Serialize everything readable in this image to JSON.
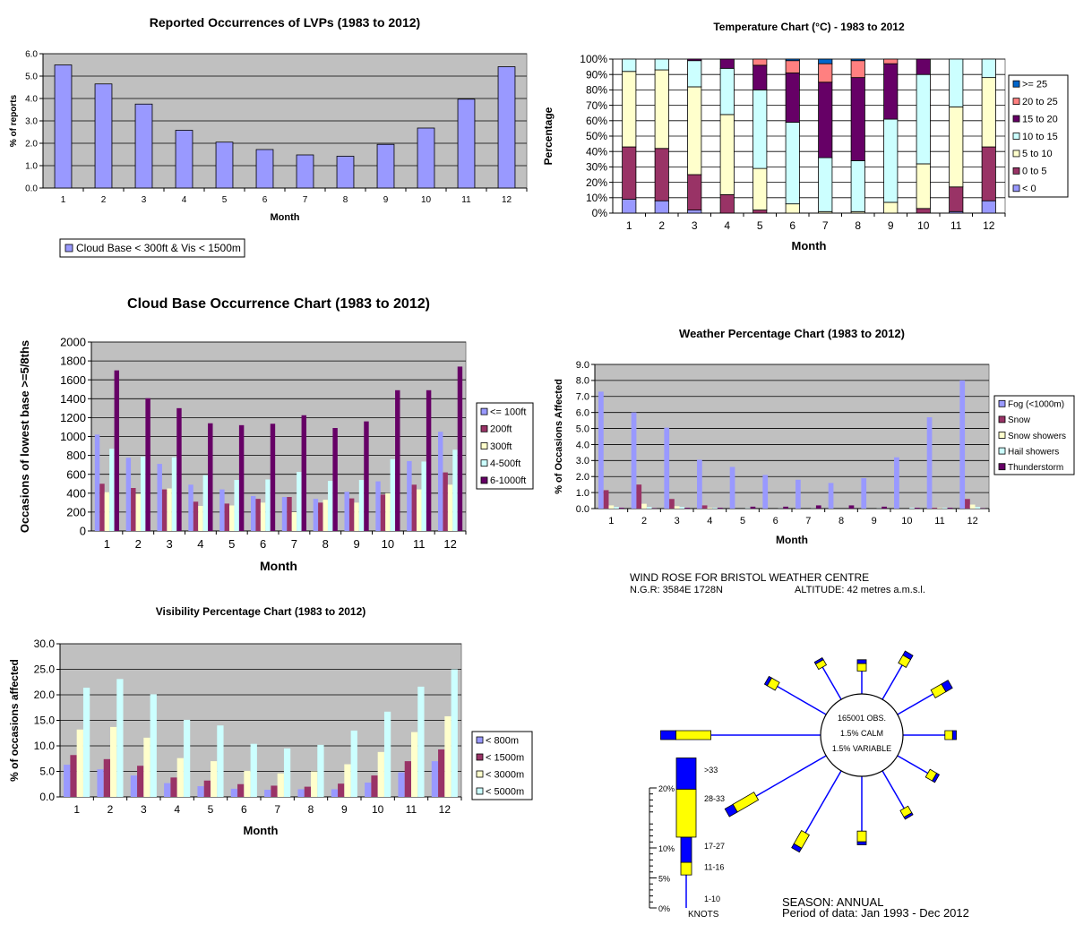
{
  "chart_data": [
    {
      "id": "lvp",
      "type": "bar",
      "title": "Reported Occurrences of LVPs (1983 to 2012)",
      "xlabel": "Month",
      "ylabel": "% of reports",
      "ylim": [
        0,
        6
      ],
      "yticks": [
        "0.0",
        "1.0",
        "2.0",
        "3.0",
        "4.0",
        "5.0",
        "6.0"
      ],
      "categories": [
        "1",
        "2",
        "3",
        "4",
        "5",
        "6",
        "7",
        "8",
        "9",
        "10",
        "11",
        "12"
      ],
      "series": [
        {
          "name": "Cloud Base < 300ft & Vis < 1500m",
          "color": "#9999ff",
          "values": [
            5.5,
            4.65,
            3.75,
            2.58,
            2.05,
            1.72,
            1.48,
            1.42,
            1.95,
            2.68,
            3.97,
            5.42
          ]
        }
      ],
      "legend": "bottom-left",
      "grid": true,
      "colors": {
        "plot_bg": "#c0c0c0"
      }
    },
    {
      "id": "temp",
      "type": "bar",
      "stacked": "percent",
      "title": "Temperature Chart (°C) - 1983 to 2012",
      "xlabel": "Month",
      "ylabel": "Percentage",
      "ylim": [
        0,
        100
      ],
      "yticks": [
        "0%",
        "10%",
        "20%",
        "30%",
        "40%",
        "50%",
        "60%",
        "70%",
        "80%",
        "90%",
        "100%"
      ],
      "categories": [
        "1",
        "2",
        "3",
        "4",
        "5",
        "6",
        "7",
        "8",
        "9",
        "10",
        "11",
        "12"
      ],
      "series": [
        {
          "name": "< 0",
          "color": "#9999ff",
          "values": [
            9,
            8,
            2,
            0,
            0,
            0,
            0,
            0,
            0,
            0,
            1,
            8
          ]
        },
        {
          "name": "0 to 5",
          "color": "#993366",
          "values": [
            34,
            34,
            23,
            12,
            2,
            0,
            0,
            0,
            0,
            3,
            16,
            35
          ]
        },
        {
          "name": "5 to 10",
          "color": "#ffffcc",
          "values": [
            49,
            51,
            57,
            52,
            27,
            6,
            1,
            1,
            7,
            29,
            52,
            45
          ]
        },
        {
          "name": "10 to 15",
          "color": "#ccffff",
          "values": [
            8,
            7,
            17,
            30,
            51,
            53,
            35,
            33,
            54,
            58,
            31,
            12
          ]
        },
        {
          "name": "15 to 20",
          "color": "#660066",
          "values": [
            0,
            0,
            1,
            6,
            16,
            32,
            49,
            54,
            36,
            10,
            0,
            0
          ]
        },
        {
          "name": "20 to 25",
          "color": "#ff8080",
          "values": [
            0,
            0,
            0,
            0,
            4,
            8,
            12,
            11,
            3,
            0,
            0,
            0
          ]
        },
        {
          "name": ">= 25",
          "color": "#0066cc",
          "values": [
            0,
            0,
            0,
            0,
            0,
            1,
            3,
            1,
            0,
            0,
            0,
            0
          ]
        }
      ],
      "legend": "right",
      "grid": true,
      "colors": {
        "plot_bg": "#ffffff"
      }
    },
    {
      "id": "cloud",
      "type": "bar",
      "title": "Cloud Base Occurrence Chart (1983 to 2012)",
      "xlabel": "Month",
      "ylabel": "Occasions of lowest base >=5/8ths",
      "ylim": [
        0,
        2000
      ],
      "yticks": [
        "0",
        "200",
        "400",
        "600",
        "800",
        "1000",
        "1200",
        "1400",
        "1600",
        "1800",
        "2000"
      ],
      "categories": [
        "1",
        "2",
        "3",
        "4",
        "5",
        "6",
        "7",
        "8",
        "9",
        "10",
        "11",
        "12"
      ],
      "series": [
        {
          "name": "<= 100ft",
          "color": "#9999ff",
          "values": [
            1020,
            775,
            710,
            490,
            440,
            370,
            360,
            340,
            415,
            525,
            740,
            1050
          ]
        },
        {
          "name": "200ft",
          "color": "#993366",
          "values": [
            500,
            455,
            440,
            310,
            290,
            340,
            360,
            300,
            345,
            385,
            490,
            620
          ]
        },
        {
          "name": "300ft",
          "color": "#ffffcc",
          "values": [
            410,
            395,
            450,
            265,
            270,
            300,
            200,
            330,
            300,
            400,
            440,
            490
          ]
        },
        {
          "name": "4-500ft",
          "color": "#ccffff",
          "values": [
            870,
            785,
            780,
            590,
            540,
            545,
            625,
            530,
            540,
            760,
            735,
            860
          ]
        },
        {
          "name": "6-1000ft",
          "color": "#660066",
          "values": [
            1700,
            1405,
            1300,
            1140,
            1120,
            1135,
            1225,
            1090,
            1160,
            1490,
            1490,
            1740
          ]
        }
      ],
      "legend": "right",
      "grid": true,
      "colors": {
        "plot_bg": "#c0c0c0"
      }
    },
    {
      "id": "weather",
      "type": "bar",
      "title": "Weather Percentage Chart (1983 to 2012)",
      "xlabel": "Month",
      "ylabel": "% of Occasions Affected",
      "ylim": [
        0,
        9
      ],
      "yticks": [
        "0.0",
        "1.0",
        "2.0",
        "3.0",
        "4.0",
        "5.0",
        "6.0",
        "7.0",
        "8.0",
        "9.0"
      ],
      "categories": [
        "1",
        "2",
        "3",
        "4",
        "5",
        "6",
        "7",
        "8",
        "9",
        "10",
        "11",
        "12"
      ],
      "series": [
        {
          "name": "Fog (<1000m)",
          "color": "#9999ff",
          "values": [
            7.3,
            6.0,
            5.05,
            3.05,
            2.6,
            2.1,
            1.8,
            1.6,
            1.9,
            3.2,
            5.7,
            8.0
          ]
        },
        {
          "name": "Snow",
          "color": "#993366",
          "values": [
            1.15,
            1.5,
            0.6,
            0.2,
            0,
            0,
            0,
            0,
            0,
            0,
            0.05,
            0.6
          ]
        },
        {
          "name": "Snow showers",
          "color": "#ffffcc",
          "values": [
            0.2,
            0.3,
            0.15,
            0.05,
            0,
            0,
            0,
            0,
            0,
            0,
            0.03,
            0.25
          ]
        },
        {
          "name": "Hail showers",
          "color": "#ccffff",
          "values": [
            0.1,
            0.1,
            0.1,
            0.05,
            0.02,
            0.01,
            0.01,
            0,
            0.01,
            0.05,
            0.05,
            0.1
          ]
        },
        {
          "name": "Thunderstorm",
          "color": "#660066",
          "values": [
            0.05,
            0.02,
            0.05,
            0.05,
            0.12,
            0.12,
            0.2,
            0.2,
            0.12,
            0.05,
            0.05,
            0.02
          ]
        }
      ],
      "legend": "right",
      "grid": true,
      "colors": {
        "plot_bg": "#c0c0c0"
      }
    },
    {
      "id": "vis",
      "type": "bar",
      "title": "Visibility Percentage Chart (1983 to 2012)",
      "xlabel": "Month",
      "ylabel": "% of occasions affected",
      "ylim": [
        0,
        30
      ],
      "yticks": [
        "0.0",
        "5.0",
        "10.0",
        "15.0",
        "20.0",
        "25.0",
        "30.0"
      ],
      "categories": [
        "1",
        "2",
        "3",
        "4",
        "5",
        "6",
        "7",
        "8",
        "9",
        "10",
        "11",
        "12"
      ],
      "series": [
        {
          "name": "< 800m",
          "color": "#9999ff",
          "values": [
            6.3,
            5.4,
            4.2,
            2.7,
            2.1,
            1.6,
            1.4,
            1.5,
            1.5,
            2.8,
            4.8,
            7.0
          ]
        },
        {
          "name": "< 1500m",
          "color": "#993366",
          "values": [
            8.2,
            7.4,
            6.1,
            3.8,
            3.2,
            2.5,
            2.2,
            2.0,
            2.6,
            4.2,
            7.0,
            9.3
          ]
        },
        {
          "name": "< 3000m",
          "color": "#ffffcc",
          "values": [
            13.2,
            13.7,
            11.6,
            7.6,
            7.0,
            5.1,
            4.6,
            5.0,
            6.4,
            8.8,
            12.7,
            15.8
          ]
        },
        {
          "name": "< 5000m",
          "color": "#ccffff",
          "values": [
            21.4,
            23.1,
            20.1,
            15.1,
            14.0,
            10.4,
            9.5,
            10.2,
            13.0,
            16.7,
            21.6,
            25.0
          ]
        }
      ],
      "legend": "right",
      "grid": true,
      "colors": {
        "plot_bg": "#c0c0c0"
      }
    }
  ],
  "wind_rose": {
    "title": "WIND ROSE FOR BRISTOL WEATHER CENTRE",
    "ngr": "N.G.R: 3584E 1728N",
    "altitude": "ALTITUDE:   42 metres a.m.s.l.",
    "center_lines": [
      "165001 OBS.",
      "1.5% CALM",
      "1.5% VARIABLE"
    ],
    "scale_ticks": [
      "20%",
      "10%",
      "5%",
      "0%"
    ],
    "speed_classes": [
      "1-10",
      "11-16",
      "17-27",
      "28-33",
      ">33"
    ],
    "units": "KNOTS",
    "season": "SEASON: ANNUAL",
    "period": "Period of data: Jan 1993 - Dec 2012",
    "colors": {
      "line": "#0000ff",
      "band_a": "#0000ff",
      "band_b": "#ffff00",
      "circle": "#000000"
    },
    "directions": [
      {
        "bearing": 0,
        "percent": 4.5,
        "band_a": 0.5,
        "band_b": 1.0
      },
      {
        "bearing": 30,
        "percent": 7.0,
        "band_a": 0.6,
        "band_b": 1.2
      },
      {
        "bearing": 60,
        "percent": 8.0,
        "band_a": 1.0,
        "band_b": 1.6
      },
      {
        "bearing": 90,
        "percent": 7.0,
        "band_a": 0.5,
        "band_b": 1.0
      },
      {
        "bearing": 120,
        "percent": 6.0,
        "band_a": 0.4,
        "band_b": 1.0
      },
      {
        "bearing": 150,
        "percent": 7.0,
        "band_a": 0.3,
        "band_b": 1.0
      },
      {
        "bearing": 180,
        "percent": 9.0,
        "band_a": 0.4,
        "band_b": 1.4
      },
      {
        "bearing": 210,
        "percent": 12.0,
        "band_a": 0.6,
        "band_b": 2.0
      },
      {
        "bearing": 240,
        "percent": 15.0,
        "band_a": 1.2,
        "band_b": 3.2
      },
      {
        "bearing": 270,
        "percent": 21.0,
        "band_a": 2.0,
        "band_b": 4.6
      },
      {
        "bearing": 300,
        "percent": 9.0,
        "band_a": 0.4,
        "band_b": 1.2
      },
      {
        "bearing": 330,
        "percent": 6.0,
        "band_a": 0.3,
        "band_b": 0.8
      }
    ]
  }
}
